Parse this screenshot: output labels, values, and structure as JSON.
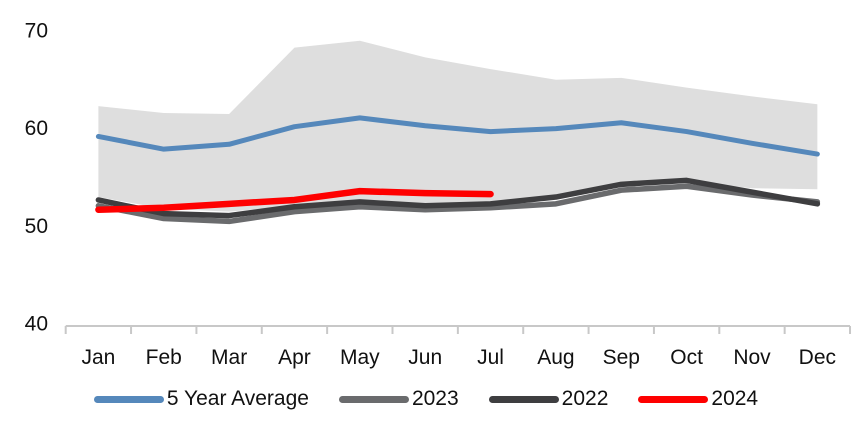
{
  "chart_data": {
    "type": "line",
    "title": "",
    "categories": [
      "Jan",
      "Feb",
      "Mar",
      "Apr",
      "May",
      "Jun",
      "Jul",
      "Aug",
      "Sep",
      "Oct",
      "Nov",
      "Dec"
    ],
    "y_axis": {
      "ticks": [
        70,
        60,
        50,
        40
      ],
      "min": 40,
      "max": 70
    },
    "grid": false,
    "legend_position": "bottom",
    "axis_color": "#c8c8c8",
    "range_band": {
      "color": "#dedede",
      "high": [
        62.2,
        61.5,
        61.4,
        68.2,
        68.9,
        67.2,
        66.0,
        64.9,
        65.1,
        64.1,
        63.2,
        62.4
      ],
      "low": [
        52.9,
        51.7,
        51.4,
        52.0,
        52.5,
        52.2,
        52.3,
        52.7,
        54.1,
        54.5,
        53.8,
        53.7
      ]
    },
    "series": [
      {
        "name": "5 Year Average",
        "color": "#5588bb",
        "width": 5,
        "values": [
          59.1,
          57.8,
          58.3,
          60.1,
          61.0,
          60.2,
          59.6,
          59.9,
          60.5,
          59.6,
          58.4,
          57.3
        ]
      },
      {
        "name": "2023",
        "color": "#6a6b6d",
        "width": 5.5,
        "values": [
          52.0,
          50.7,
          50.4,
          51.4,
          51.9,
          51.6,
          51.8,
          52.2,
          53.6,
          54.0,
          53.1,
          52.4
        ]
      },
      {
        "name": "2022",
        "color": "#3e3e40",
        "width": 5.5,
        "values": [
          52.6,
          51.2,
          51.0,
          51.9,
          52.4,
          52.0,
          52.2,
          52.9,
          54.2,
          54.6,
          53.4,
          52.2
        ]
      },
      {
        "name": "2024",
        "color": "#fe0000",
        "width": 6.5,
        "values": [
          51.6,
          51.8,
          52.2,
          52.6,
          53.5,
          53.3,
          53.2
        ]
      }
    ]
  }
}
